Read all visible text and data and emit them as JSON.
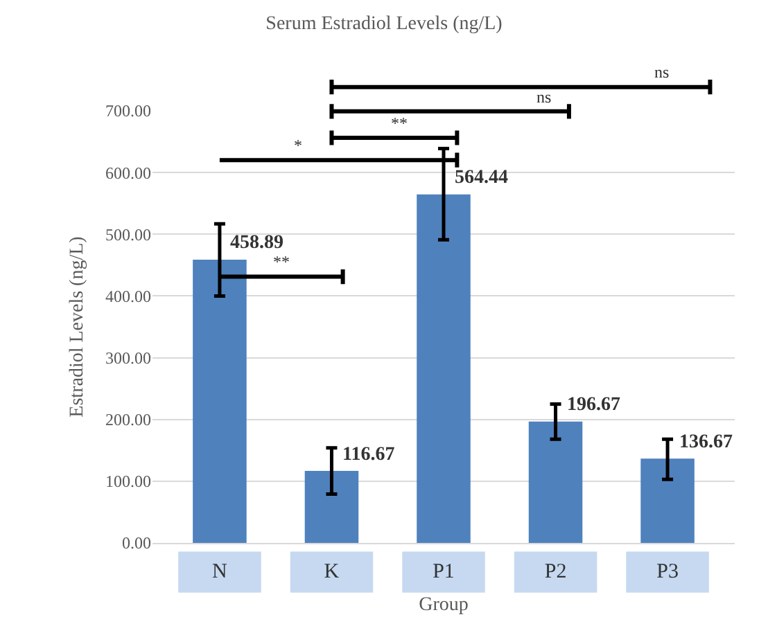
{
  "chart_data": {
    "type": "bar",
    "title": "Serum Estradiol Levels (ng/L)",
    "xlabel": "Group",
    "ylabel": "Estradiol Levels (ng/L)",
    "categories": [
      "N",
      "K",
      "P1",
      "P2",
      "P3"
    ],
    "values": [
      458.89,
      116.67,
      564.44,
      196.67,
      136.67
    ],
    "errors": [
      [
        400,
        517
      ],
      [
        79,
        154
      ],
      [
        491,
        639
      ],
      [
        168,
        225
      ],
      [
        103,
        168
      ]
    ],
    "color": "#4f81bd",
    "data_labels": true,
    "ylim": [
      0,
      700
    ],
    "yticks": [
      {
        "value": 0,
        "label": "0.00"
      },
      {
        "value": 100,
        "label": "100.00"
      },
      {
        "value": 200,
        "label": "200.00"
      },
      {
        "value": 300,
        "label": "300.00"
      },
      {
        "value": 400,
        "label": "400.00"
      },
      {
        "value": 500,
        "label": "500.00"
      },
      {
        "value": 600,
        "label": "600.00"
      },
      {
        "value": 700,
        "label": "700.00"
      }
    ],
    "grid": "y",
    "annotations": [
      "**",
      "*",
      "**",
      "ns",
      "ns"
    ]
  }
}
